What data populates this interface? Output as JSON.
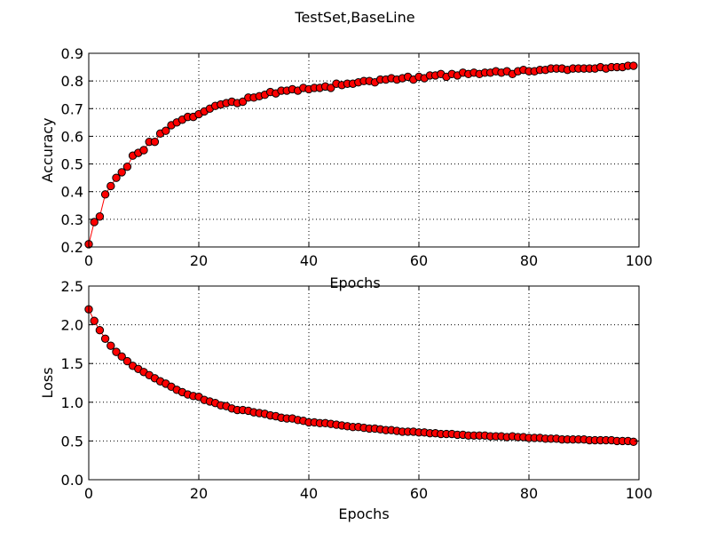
{
  "figure": {
    "title": "TestSet,BaseLine"
  },
  "style": {
    "line_color": "#ff0000",
    "marker_face": "#ff0000",
    "marker_edge": "#000000",
    "grid_color": "#000000",
    "frame_color": "#000000"
  },
  "chart_data": [
    {
      "type": "line",
      "xlabel": "Epochs",
      "ylabel": "Accuracy",
      "xlim": [
        0,
        100
      ],
      "ylim": [
        0.2,
        0.9
      ],
      "xticks": [
        0,
        20,
        40,
        60,
        80,
        100
      ],
      "xtick_labels": [
        "0",
        "20",
        "40",
        "60",
        "80",
        "100"
      ],
      "yticks": [
        0.2,
        0.3,
        0.4,
        0.5,
        0.6,
        0.7,
        0.8,
        0.9
      ],
      "ytick_labels": [
        "0.2",
        "0.3",
        "0.4",
        "0.5",
        "0.6",
        "0.7",
        "0.8",
        "0.9"
      ],
      "grid": true,
      "marker": "circle",
      "x": [
        0,
        1,
        2,
        3,
        4,
        5,
        6,
        7,
        8,
        9,
        10,
        11,
        12,
        13,
        14,
        15,
        16,
        17,
        18,
        19,
        20,
        21,
        22,
        23,
        24,
        25,
        26,
        27,
        28,
        29,
        30,
        31,
        32,
        33,
        34,
        35,
        36,
        37,
        38,
        39,
        40,
        41,
        42,
        43,
        44,
        45,
        46,
        47,
        48,
        49,
        50,
        51,
        52,
        53,
        54,
        55,
        56,
        57,
        58,
        59,
        60,
        61,
        62,
        63,
        64,
        65,
        66,
        67,
        68,
        69,
        70,
        71,
        72,
        73,
        74,
        75,
        76,
        77,
        78,
        79,
        80,
        81,
        82,
        83,
        84,
        85,
        86,
        87,
        88,
        89,
        90,
        91,
        92,
        93,
        94,
        95,
        96,
        97,
        98,
        99
      ],
      "y": [
        0.21,
        0.29,
        0.31,
        0.39,
        0.42,
        0.45,
        0.47,
        0.49,
        0.53,
        0.54,
        0.55,
        0.58,
        0.58,
        0.61,
        0.62,
        0.64,
        0.65,
        0.66,
        0.67,
        0.67,
        0.68,
        0.69,
        0.7,
        0.71,
        0.715,
        0.72,
        0.725,
        0.72,
        0.725,
        0.74,
        0.74,
        0.745,
        0.75,
        0.76,
        0.755,
        0.765,
        0.765,
        0.77,
        0.765,
        0.775,
        0.77,
        0.775,
        0.775,
        0.78,
        0.775,
        0.79,
        0.785,
        0.79,
        0.79,
        0.795,
        0.8,
        0.8,
        0.795,
        0.805,
        0.805,
        0.81,
        0.805,
        0.81,
        0.815,
        0.805,
        0.815,
        0.81,
        0.82,
        0.82,
        0.825,
        0.815,
        0.825,
        0.82,
        0.83,
        0.825,
        0.83,
        0.825,
        0.83,
        0.83,
        0.835,
        0.83,
        0.835,
        0.825,
        0.835,
        0.84,
        0.835,
        0.835,
        0.84,
        0.84,
        0.845,
        0.845,
        0.845,
        0.84,
        0.845,
        0.845,
        0.845,
        0.845,
        0.845,
        0.85,
        0.845,
        0.85,
        0.85,
        0.85,
        0.855,
        0.855
      ]
    },
    {
      "type": "line",
      "xlabel": "Epochs",
      "ylabel": "Loss",
      "xlim": [
        0,
        100
      ],
      "ylim": [
        0.0,
        2.5
      ],
      "xticks": [
        0,
        20,
        40,
        60,
        80,
        100
      ],
      "xtick_labels": [
        "0",
        "20",
        "40",
        "60",
        "80",
        "100"
      ],
      "yticks": [
        0.0,
        0.5,
        1.0,
        1.5,
        2.0,
        2.5
      ],
      "ytick_labels": [
        "0.0",
        "0.5",
        "1.0",
        "1.5",
        "2.0",
        "2.5"
      ],
      "grid": true,
      "marker": "circle",
      "x": [
        0,
        1,
        2,
        3,
        4,
        5,
        6,
        7,
        8,
        9,
        10,
        11,
        12,
        13,
        14,
        15,
        16,
        17,
        18,
        19,
        20,
        21,
        22,
        23,
        24,
        25,
        26,
        27,
        28,
        29,
        30,
        31,
        32,
        33,
        34,
        35,
        36,
        37,
        38,
        39,
        40,
        41,
        42,
        43,
        44,
        45,
        46,
        47,
        48,
        49,
        50,
        51,
        52,
        53,
        54,
        55,
        56,
        57,
        58,
        59,
        60,
        61,
        62,
        63,
        64,
        65,
        66,
        67,
        68,
        69,
        70,
        71,
        72,
        73,
        74,
        75,
        76,
        77,
        78,
        79,
        80,
        81,
        82,
        83,
        84,
        85,
        86,
        87,
        88,
        89,
        90,
        91,
        92,
        93,
        94,
        95,
        96,
        97,
        98,
        99
      ],
      "y": [
        2.2,
        2.05,
        1.93,
        1.82,
        1.73,
        1.65,
        1.59,
        1.53,
        1.47,
        1.43,
        1.39,
        1.35,
        1.31,
        1.27,
        1.24,
        1.2,
        1.16,
        1.13,
        1.1,
        1.08,
        1.07,
        1.03,
        1.01,
        0.99,
        0.96,
        0.95,
        0.92,
        0.9,
        0.9,
        0.89,
        0.87,
        0.86,
        0.85,
        0.83,
        0.82,
        0.8,
        0.79,
        0.79,
        0.77,
        0.76,
        0.74,
        0.74,
        0.73,
        0.73,
        0.72,
        0.71,
        0.7,
        0.69,
        0.68,
        0.68,
        0.67,
        0.66,
        0.66,
        0.65,
        0.64,
        0.64,
        0.63,
        0.62,
        0.62,
        0.62,
        0.61,
        0.61,
        0.6,
        0.6,
        0.59,
        0.59,
        0.59,
        0.58,
        0.58,
        0.57,
        0.57,
        0.57,
        0.57,
        0.56,
        0.56,
        0.56,
        0.55,
        0.56,
        0.55,
        0.55,
        0.54,
        0.54,
        0.54,
        0.53,
        0.53,
        0.53,
        0.52,
        0.52,
        0.52,
        0.52,
        0.52,
        0.51,
        0.51,
        0.51,
        0.51,
        0.51,
        0.5,
        0.5,
        0.5,
        0.49
      ]
    }
  ]
}
